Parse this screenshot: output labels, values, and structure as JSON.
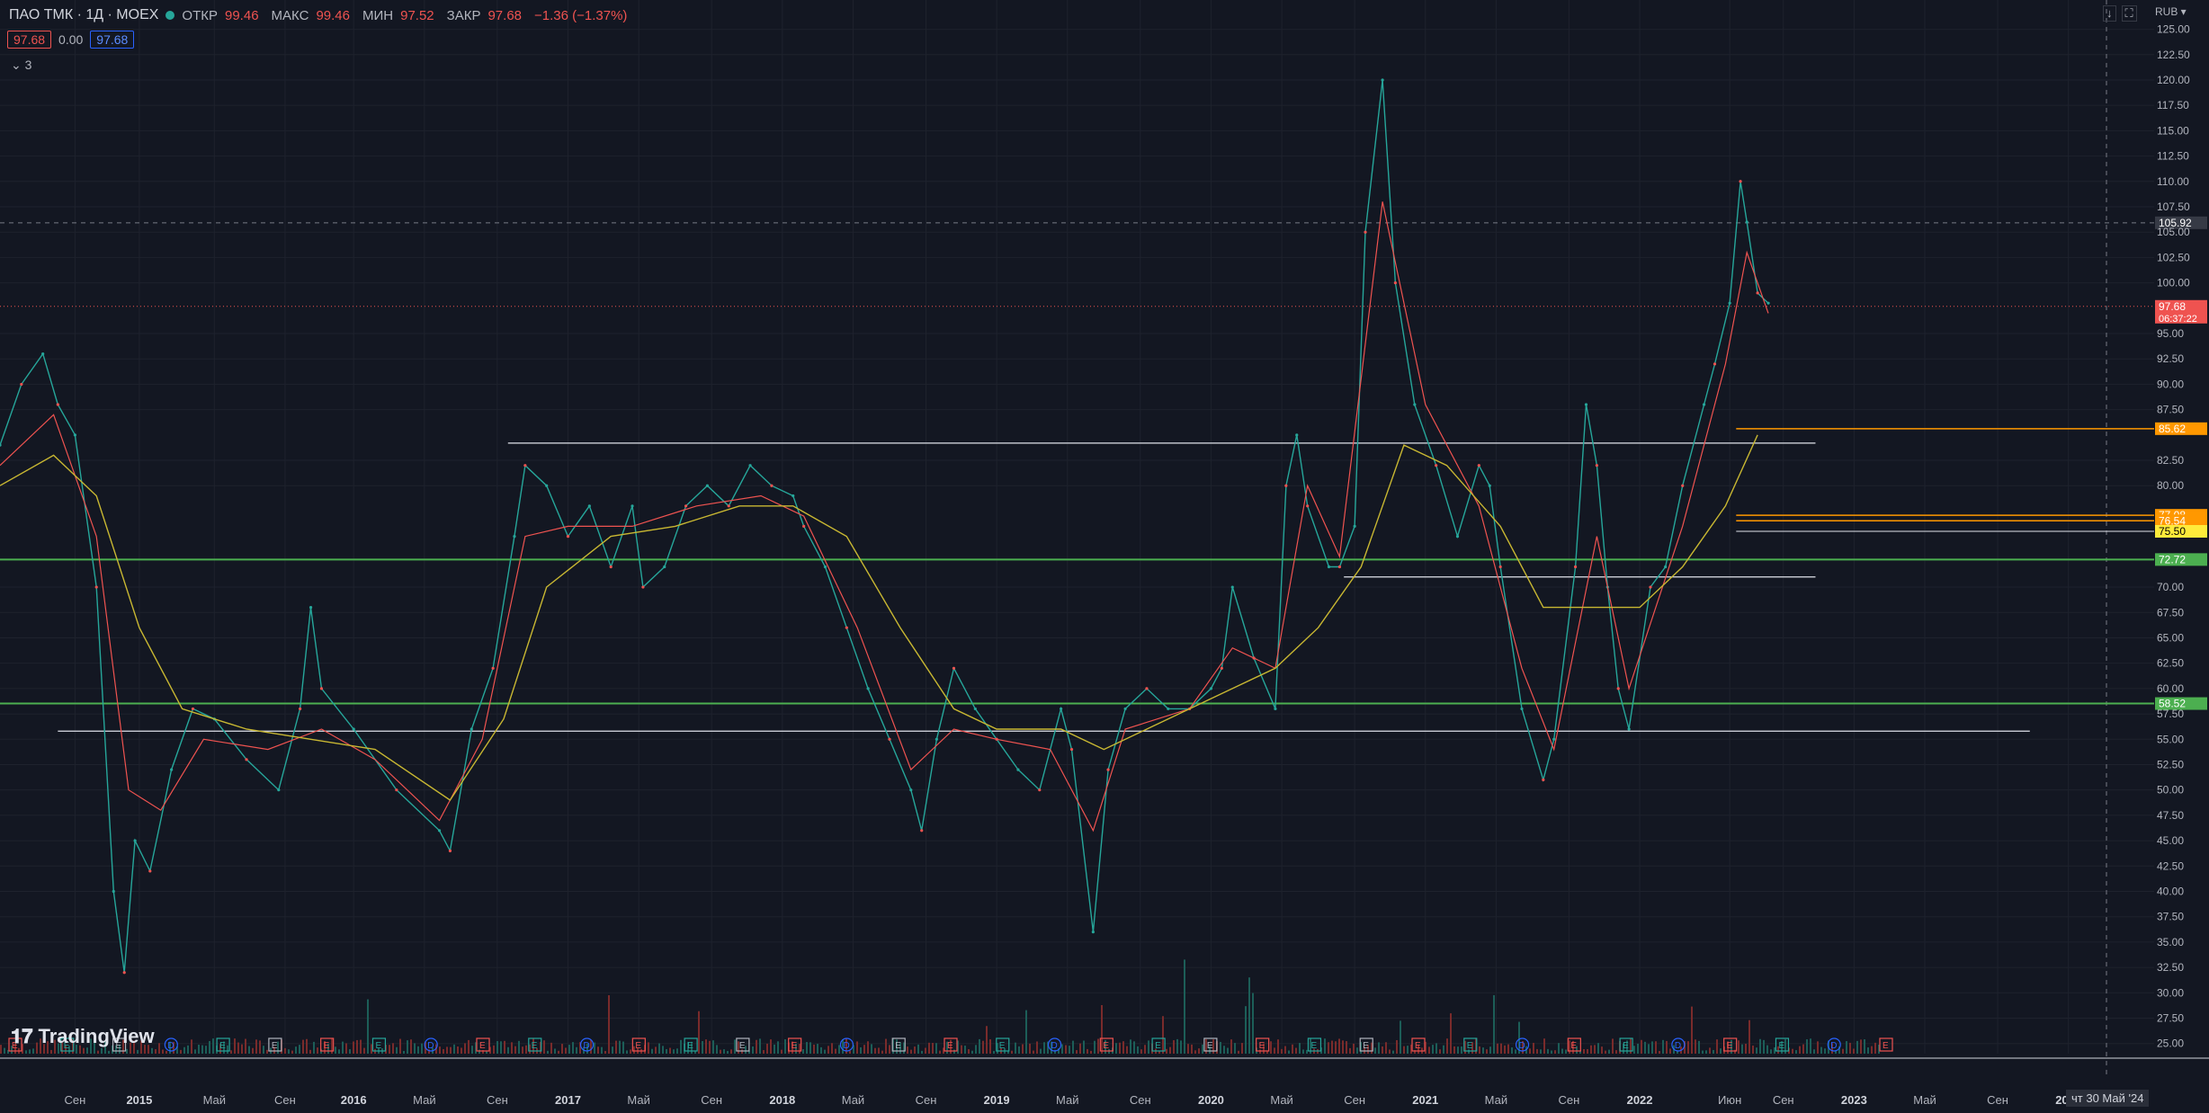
{
  "legend": {
    "symbol": "ПАО ТМК · 1Д · MOEX",
    "open_label": "ОТКР",
    "open": "99.46",
    "high_label": "МАКС",
    "high": "99.46",
    "low_label": "МИН",
    "low": "97.52",
    "close_label": "ЗАКР",
    "close": "97.68",
    "change": "−1.36 (−1.37%)"
  },
  "pills": {
    "bid": "97.68",
    "spread": "0.00",
    "ask": "97.68"
  },
  "collapse": "3",
  "logo": "TradingView",
  "currency": "RUB",
  "crosshair_date": "чт 30 Май '24",
  "colors": {
    "bg": "#131722",
    "up": "#26a69a",
    "down": "#ef5350",
    "ma_short": "#ef5350",
    "ma_long": "#d4c030",
    "grid": "#2a2e39"
  },
  "chart_data": {
    "type": "line",
    "title": "",
    "ylim": [
      24,
      127
    ],
    "price_ticks": [
      "125.00",
      "122.50",
      "120.00",
      "117.50",
      "115.00",
      "112.50",
      "110.00",
      "107.50",
      "105.00",
      "102.50",
      "100.00",
      "95.00",
      "92.50",
      "90.00",
      "87.50",
      "82.50",
      "80.00",
      "70.00",
      "67.50",
      "65.00",
      "62.50",
      "60.00",
      "57.50",
      "55.00",
      "52.50",
      "50.00",
      "47.50",
      "45.00",
      "42.50",
      "40.00",
      "37.50",
      "35.00",
      "32.50",
      "30.00",
      "27.50",
      "25.00"
    ],
    "time_ticks": [
      "Сен",
      "2015",
      "Май",
      "Сен",
      "2016",
      "Май",
      "Сен",
      "2017",
      "Май",
      "Сен",
      "2018",
      "Май",
      "Сен",
      "2019",
      "Май",
      "Сен",
      "2020",
      "Май",
      "Сен",
      "2021",
      "Май",
      "Сен",
      "2022",
      "Июн",
      "Сен",
      "2023",
      "Май",
      "Сен",
      "2024"
    ],
    "time_tick_years": [
      2014.7,
      2015.0,
      2015.35,
      2015.68,
      2016.0,
      2016.33,
      2016.67,
      2017.0,
      2017.33,
      2017.67,
      2018.0,
      2018.33,
      2018.67,
      2019.0,
      2019.33,
      2019.67,
      2020.0,
      2020.33,
      2020.67,
      2021.0,
      2021.33,
      2021.67,
      2022.0,
      2022.42,
      2022.67,
      2023.0,
      2023.33,
      2023.67,
      2024.0
    ],
    "series": [
      {
        "values": [
          [
            2014.35,
            84
          ],
          [
            2014.45,
            90
          ],
          [
            2014.55,
            93
          ],
          [
            2014.62,
            88
          ],
          [
            2014.7,
            85
          ],
          [
            2014.8,
            70
          ],
          [
            2014.88,
            40
          ],
          [
            2014.93,
            32
          ],
          [
            2014.98,
            45
          ],
          [
            2015.05,
            42
          ],
          [
            2015.15,
            52
          ],
          [
            2015.25,
            58
          ],
          [
            2015.35,
            57
          ],
          [
            2015.5,
            53
          ],
          [
            2015.65,
            50
          ],
          [
            2015.75,
            58
          ],
          [
            2015.8,
            68
          ],
          [
            2015.85,
            60
          ],
          [
            2016.0,
            56
          ],
          [
            2016.2,
            50
          ],
          [
            2016.4,
            46
          ],
          [
            2016.45,
            44
          ],
          [
            2016.55,
            56
          ],
          [
            2016.65,
            62
          ],
          [
            2016.75,
            75
          ],
          [
            2016.8,
            82
          ],
          [
            2016.9,
            80
          ],
          [
            2017.0,
            75
          ],
          [
            2017.1,
            78
          ],
          [
            2017.2,
            72
          ],
          [
            2017.3,
            78
          ],
          [
            2017.35,
            70
          ],
          [
            2017.45,
            72
          ],
          [
            2017.55,
            78
          ],
          [
            2017.65,
            80
          ],
          [
            2017.75,
            78
          ],
          [
            2017.85,
            82
          ],
          [
            2017.95,
            80
          ],
          [
            2018.05,
            79
          ],
          [
            2018.1,
            76
          ],
          [
            2018.2,
            72
          ],
          [
            2018.3,
            66
          ],
          [
            2018.4,
            60
          ],
          [
            2018.5,
            55
          ],
          [
            2018.6,
            50
          ],
          [
            2018.65,
            46
          ],
          [
            2018.72,
            55
          ],
          [
            2018.8,
            62
          ],
          [
            2018.9,
            58
          ],
          [
            2019.0,
            55
          ],
          [
            2019.1,
            52
          ],
          [
            2019.2,
            50
          ],
          [
            2019.3,
            58
          ],
          [
            2019.35,
            54
          ],
          [
            2019.45,
            36
          ],
          [
            2019.52,
            52
          ],
          [
            2019.6,
            58
          ],
          [
            2019.7,
            60
          ],
          [
            2019.8,
            58
          ],
          [
            2019.9,
            58
          ],
          [
            2020.0,
            60
          ],
          [
            2020.05,
            62
          ],
          [
            2020.1,
            70
          ],
          [
            2020.2,
            63
          ],
          [
            2020.3,
            58
          ],
          [
            2020.35,
            80
          ],
          [
            2020.4,
            85
          ],
          [
            2020.45,
            78
          ],
          [
            2020.55,
            72
          ],
          [
            2020.6,
            72
          ],
          [
            2020.67,
            76
          ],
          [
            2020.72,
            105
          ],
          [
            2020.8,
            120
          ],
          [
            2020.86,
            100
          ],
          [
            2020.95,
            88
          ],
          [
            2021.05,
            82
          ],
          [
            2021.15,
            75
          ],
          [
            2021.25,
            82
          ],
          [
            2021.3,
            80
          ],
          [
            2021.35,
            72
          ],
          [
            2021.45,
            58
          ],
          [
            2021.55,
            51
          ],
          [
            2021.6,
            55
          ],
          [
            2021.7,
            72
          ],
          [
            2021.75,
            88
          ],
          [
            2021.8,
            82
          ],
          [
            2021.85,
            70
          ],
          [
            2021.9,
            60
          ],
          [
            2021.95,
            56
          ],
          [
            2022.05,
            70
          ],
          [
            2022.12,
            72
          ],
          [
            2022.2,
            80
          ],
          [
            2022.3,
            88
          ],
          [
            2022.35,
            92
          ],
          [
            2022.42,
            98
          ],
          [
            2022.47,
            110
          ],
          [
            2022.5,
            106
          ],
          [
            2022.55,
            99
          ],
          [
            2022.6,
            98
          ]
        ]
      },
      {
        "values": [
          [
            2014.35,
            82
          ],
          [
            2014.6,
            87
          ],
          [
            2014.8,
            75
          ],
          [
            2014.95,
            50
          ],
          [
            2015.1,
            48
          ],
          [
            2015.3,
            55
          ],
          [
            2015.6,
            54
          ],
          [
            2015.85,
            56
          ],
          [
            2016.1,
            53
          ],
          [
            2016.4,
            47
          ],
          [
            2016.6,
            55
          ],
          [
            2016.8,
            75
          ],
          [
            2017.0,
            76
          ],
          [
            2017.3,
            76
          ],
          [
            2017.6,
            78
          ],
          [
            2017.9,
            79
          ],
          [
            2018.1,
            77
          ],
          [
            2018.35,
            66
          ],
          [
            2018.6,
            52
          ],
          [
            2018.8,
            56
          ],
          [
            2019.0,
            55
          ],
          [
            2019.25,
            54
          ],
          [
            2019.45,
            46
          ],
          [
            2019.6,
            56
          ],
          [
            2019.9,
            58
          ],
          [
            2020.1,
            64
          ],
          [
            2020.3,
            62
          ],
          [
            2020.45,
            80
          ],
          [
            2020.6,
            73
          ],
          [
            2020.8,
            108
          ],
          [
            2021.0,
            88
          ],
          [
            2021.25,
            78
          ],
          [
            2021.45,
            62
          ],
          [
            2021.6,
            54
          ],
          [
            2021.8,
            75
          ],
          [
            2021.95,
            60
          ],
          [
            2022.2,
            76
          ],
          [
            2022.4,
            92
          ],
          [
            2022.5,
            103
          ],
          [
            2022.6,
            97
          ]
        ]
      },
      {
        "values": [
          [
            2014.35,
            80
          ],
          [
            2014.6,
            83
          ],
          [
            2014.8,
            79
          ],
          [
            2015.0,
            66
          ],
          [
            2015.2,
            58
          ],
          [
            2015.5,
            56
          ],
          [
            2015.8,
            55
          ],
          [
            2016.1,
            54
          ],
          [
            2016.45,
            49
          ],
          [
            2016.7,
            57
          ],
          [
            2016.9,
            70
          ],
          [
            2017.2,
            75
          ],
          [
            2017.5,
            76
          ],
          [
            2017.8,
            78
          ],
          [
            2018.05,
            78
          ],
          [
            2018.3,
            75
          ],
          [
            2018.55,
            66
          ],
          [
            2018.8,
            58
          ],
          [
            2019.0,
            56
          ],
          [
            2019.3,
            56
          ],
          [
            2019.5,
            54
          ],
          [
            2019.7,
            56
          ],
          [
            2020.0,
            59
          ],
          [
            2020.3,
            62
          ],
          [
            2020.5,
            66
          ],
          [
            2020.7,
            72
          ],
          [
            2020.9,
            84
          ],
          [
            2021.1,
            82
          ],
          [
            2021.35,
            76
          ],
          [
            2021.55,
            68
          ],
          [
            2021.8,
            68
          ],
          [
            2022.0,
            68
          ],
          [
            2022.2,
            72
          ],
          [
            2022.4,
            78
          ],
          [
            2022.55,
            85
          ]
        ]
      }
    ],
    "levels": [
      {
        "value": "85.62",
        "kind": "orange"
      },
      {
        "value": "77.08",
        "kind": "orange"
      },
      {
        "value": "76.54",
        "kind": "orange"
      },
      {
        "value": "75.50",
        "kind": "yellow"
      },
      {
        "value": "72.72",
        "kind": "green"
      },
      {
        "value": "58.52",
        "kind": "green"
      },
      {
        "value": "97.68",
        "kind": "current",
        "countdown": "06:37:22"
      },
      {
        "value": "105.92",
        "kind": "cross"
      }
    ],
    "support_lines": [
      {
        "x1": 2014.62,
        "x2": 2023.82,
        "y": 55.8
      },
      {
        "x1": 2016.72,
        "x2": 2022.82,
        "y": 84.2
      },
      {
        "x1": 2020.62,
        "x2": 2022.82,
        "y": 71.0
      }
    ],
    "events": [
      "E",
      "E",
      "E",
      "D",
      "E",
      "E",
      "E",
      "E",
      "D",
      "E",
      "E",
      "D",
      "E",
      "E",
      "E",
      "E",
      "D",
      "E",
      "E",
      "E",
      "D",
      "E",
      "E",
      "E",
      "E",
      "E",
      "E",
      "E",
      "E",
      "D",
      "E",
      "E",
      "D",
      "E",
      "E",
      "D",
      "E"
    ]
  }
}
